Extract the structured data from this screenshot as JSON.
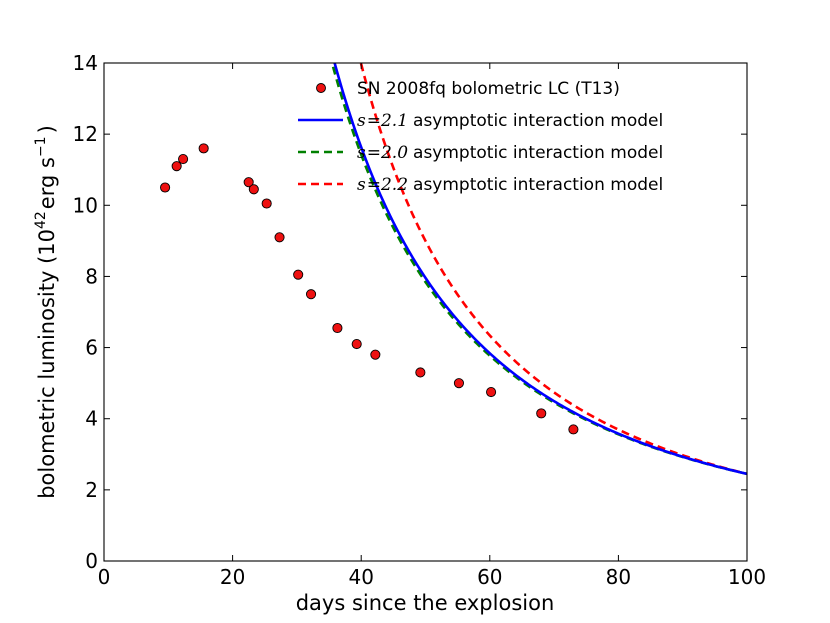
{
  "chart_data": {
    "type": "scatter+line",
    "xlabel": "days since the explosion",
    "ylabel": {
      "prefix": "bolometric luminosity (10",
      "exp1": "42",
      "unit": "erg s",
      "exp2": "−1",
      "suffix": ")"
    },
    "xlim": [
      0,
      100
    ],
    "ylim": [
      0,
      14
    ],
    "xticks": [
      0,
      20,
      40,
      60,
      80,
      100
    ],
    "yticks": [
      0,
      2,
      4,
      6,
      8,
      10,
      12,
      14
    ],
    "grid": false,
    "legend_position": "top-right",
    "scatter": {
      "name": "SN 2008fq bolometric LC (T13)",
      "color": "#ee1111",
      "points": [
        [
          9.5,
          10.5
        ],
        [
          11.3,
          11.1
        ],
        [
          12.3,
          11.3
        ],
        [
          15.5,
          11.6
        ],
        [
          22.5,
          10.65
        ],
        [
          23.3,
          10.45
        ],
        [
          25.3,
          10.05
        ],
        [
          27.3,
          9.1
        ],
        [
          30.2,
          8.05
        ],
        [
          32.2,
          7.5
        ],
        [
          36.3,
          6.55
        ],
        [
          39.3,
          6.1
        ],
        [
          42.2,
          5.8
        ],
        [
          49.2,
          5.3
        ],
        [
          55.2,
          5.0
        ],
        [
          60.2,
          4.75
        ],
        [
          68.0,
          4.15
        ],
        [
          73.0,
          3.7
        ]
      ]
    },
    "series": [
      {
        "name": "asymptotic interaction model",
        "s_label": "s",
        "s_value": "2.1",
        "color": "#0000ff",
        "dash": "solid",
        "A": 11.25,
        "power": 1.7,
        "t0": 0
      },
      {
        "name": "asymptotic interaction model",
        "s_label": "s",
        "s_value": "2.0",
        "color": "#008000",
        "dash": "dashed",
        "A": 9.5,
        "power": 1.6667,
        "t0": 0.5
      },
      {
        "name": "asymptotic interaction model",
        "s_label": "s",
        "s_value": "2.2",
        "color": "#ff0000",
        "dash": "dashed",
        "A": 12.46,
        "power": 1.7273,
        "t0": 5.5
      }
    ]
  }
}
